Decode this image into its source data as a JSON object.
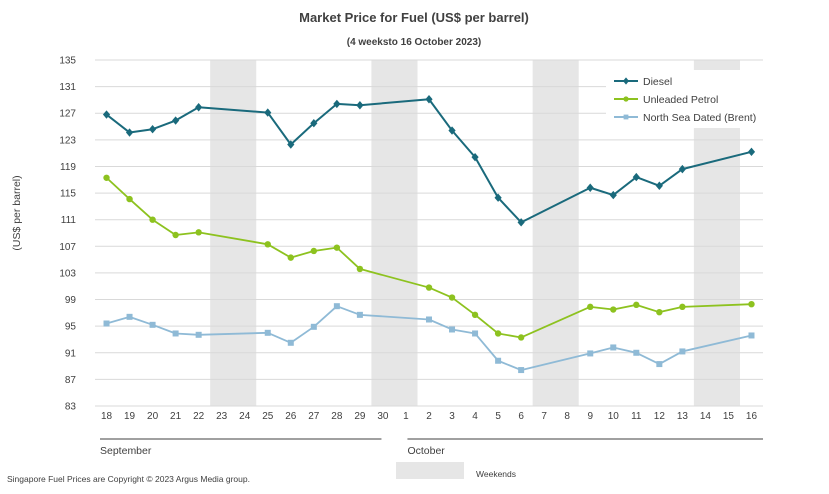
{
  "chart_data": {
    "type": "line",
    "title": "Market Price for Fuel (US$ per barrel)",
    "subtitle": "(4 weeksto 16 October 2023)",
    "ylabel": "(US$ per barrel)",
    "xlabel": "",
    "ylim": [
      83,
      135
    ],
    "yticks": [
      83,
      87,
      91,
      95,
      99,
      103,
      107,
      111,
      115,
      119,
      123,
      127,
      131,
      135
    ],
    "grid": true,
    "legend_position": "top-right",
    "days": [
      "18",
      "19",
      "20",
      "21",
      "22",
      "23",
      "24",
      "25",
      "26",
      "27",
      "28",
      "29",
      "30",
      "1",
      "2",
      "3",
      "4",
      "5",
      "6",
      "7",
      "8",
      "9",
      "10",
      "11",
      "12",
      "13",
      "14",
      "15",
      "16"
    ],
    "weekend_day_indices": [
      [
        5,
        6
      ],
      [
        12,
        13
      ],
      [
        19,
        20
      ],
      [
        26,
        27
      ]
    ],
    "months": [
      {
        "label": "September",
        "start_index": 0,
        "end_index": 12
      },
      {
        "label": "October",
        "start_index": 13,
        "end_index": 28
      }
    ],
    "series": [
      {
        "name": "Diesel",
        "color": "#1a6a7c",
        "marker": "diamond",
        "values": [
          126.8,
          124.1,
          124.6,
          125.9,
          127.9,
          null,
          null,
          127.1,
          122.3,
          125.5,
          128.4,
          128.2,
          null,
          null,
          129.1,
          124.4,
          120.4,
          114.3,
          110.6,
          null,
          null,
          115.8,
          114.7,
          117.4,
          116.1,
          118.6,
          null,
          null,
          121.2
        ]
      },
      {
        "name": "Unleaded Petrol",
        "color": "#8dc21f",
        "marker": "circle",
        "values": [
          117.3,
          114.1,
          111.0,
          108.7,
          109.1,
          null,
          null,
          107.3,
          105.3,
          106.3,
          106.8,
          103.6,
          null,
          null,
          100.8,
          99.3,
          96.7,
          93.9,
          93.3,
          null,
          null,
          97.9,
          97.5,
          98.2,
          97.1,
          97.9,
          null,
          null,
          98.3
        ]
      },
      {
        "name": "North Sea Dated (Brent)",
        "color": "#8fbad6",
        "marker": "square",
        "values": [
          95.4,
          96.4,
          95.2,
          93.9,
          93.7,
          null,
          null,
          94.0,
          92.5,
          94.9,
          98.0,
          96.7,
          null,
          null,
          96.0,
          94.5,
          93.9,
          89.8,
          88.4,
          null,
          null,
          90.9,
          91.8,
          91.0,
          89.3,
          91.2,
          null,
          null,
          93.6
        ]
      }
    ],
    "weekend_legend_label": "Weekends",
    "footer": "Singapore Fuel Prices are Copyright © 2023 Argus Media group."
  }
}
